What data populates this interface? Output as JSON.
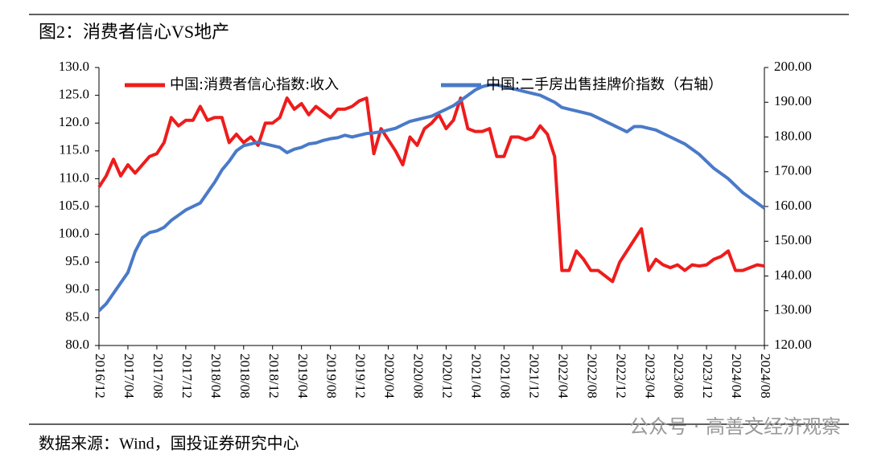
{
  "chart_data": {
    "type": "line",
    "title": "图2：消费者信心VS地产",
    "source": "数据来源：Wind，国投证券研究中心",
    "watermark": "公众号 · 高善文经济观察",
    "categories": [
      "2016/12",
      null,
      null,
      null,
      "2017/04",
      null,
      null,
      null,
      "2017/08",
      null,
      null,
      null,
      "2017/12",
      null,
      null,
      null,
      "2018/04",
      null,
      null,
      null,
      "2018/08",
      null,
      null,
      null,
      "2018/12",
      null,
      null,
      null,
      "2019/04",
      null,
      null,
      null,
      "2019/08",
      null,
      null,
      null,
      "2019/12",
      null,
      null,
      null,
      "2020/04",
      null,
      null,
      null,
      "2020/08",
      null,
      null,
      null,
      "2020/12",
      null,
      null,
      null,
      "2021/04",
      null,
      null,
      null,
      "2021/08",
      null,
      null,
      null,
      "2021/12",
      null,
      null,
      null,
      "2022/04",
      null,
      null,
      null,
      "2022/08",
      null,
      null,
      null,
      "2022/12",
      null,
      null,
      null,
      "2023/04",
      null,
      null,
      null,
      "2023/08",
      null,
      null,
      null,
      "2023/12",
      null,
      null,
      null,
      "2024/04",
      null,
      null,
      null,
      "2024/08"
    ],
    "series": [
      {
        "name": "中国:消费者信心指数:收入",
        "color": "#ee1c1c",
        "axis": "y",
        "values": [
          108.5,
          110.5,
          113.5,
          110.5,
          112.5,
          111,
          112.5,
          114,
          114.5,
          116.5,
          121,
          119.5,
          120.5,
          120.5,
          123,
          120.5,
          121,
          121,
          116.5,
          118,
          116.5,
          117.5,
          116,
          120,
          120,
          121,
          124.5,
          122.5,
          123.5,
          121.5,
          123,
          122,
          121,
          122.5,
          122.5,
          123,
          124,
          124.5,
          114.5,
          119,
          117,
          115,
          112.5,
          117.5,
          116,
          119,
          120,
          121.5,
          119,
          120.5,
          124.5,
          119,
          118.5,
          118.5,
          119,
          114,
          114,
          117.5,
          117.5,
          117,
          117.5,
          119.5,
          118,
          114,
          93.5,
          93.5,
          97,
          95.5,
          93.5,
          93.5,
          92.5,
          91.5,
          95,
          97,
          99,
          101,
          93.5,
          95.5,
          94.5,
          94,
          94.5,
          93.5,
          94.5,
          94.3,
          94.5,
          95.5,
          96,
          97,
          93.5,
          93.5,
          94,
          94.5,
          94.3
        ]
      },
      {
        "name": "中国:二手房出售挂牌价指数（右轴）",
        "color": "#4a7ac8",
        "axis": "y2",
        "values": [
          130,
          132,
          135,
          138,
          141,
          147,
          151,
          152.5,
          153,
          154,
          156,
          157.5,
          159,
          160,
          161,
          164,
          167,
          170.5,
          173,
          176,
          177.5,
          178,
          178.5,
          178,
          177.5,
          177,
          175.5,
          176.5,
          177,
          178,
          178.3,
          179,
          179.5,
          179.8,
          180.5,
          180,
          180.5,
          181,
          181.2,
          181.5,
          182,
          182.5,
          183.5,
          184.5,
          185,
          185.5,
          186,
          187,
          188,
          189,
          190.5,
          192,
          193.5,
          194.5,
          195,
          195,
          194.5,
          194,
          193.5,
          193,
          192.5,
          192,
          191,
          190,
          188.5,
          188,
          187.5,
          187,
          186.5,
          185.5,
          184.5,
          183.5,
          182.5,
          181.5,
          183,
          183,
          182.5,
          182,
          181,
          180,
          179,
          178,
          176.5,
          175,
          173,
          171,
          169.5,
          168,
          166,
          164,
          162.5,
          161,
          159.5
        ]
      }
    ],
    "ylim": [
      80,
      130
    ],
    "yticks": [
      {
        "value": 80,
        "label": "80.0"
      },
      {
        "value": 85,
        "label": "85.0"
      },
      {
        "value": 90,
        "label": "90.0"
      },
      {
        "value": 95,
        "label": "95.0"
      },
      {
        "value": 100,
        "label": "100.0"
      },
      {
        "value": 105,
        "label": "105.0"
      },
      {
        "value": 110,
        "label": "110.0"
      },
      {
        "value": 115,
        "label": "115.0"
      },
      {
        "value": 120,
        "label": "120.0"
      },
      {
        "value": 125,
        "label": "125.0"
      },
      {
        "value": 130,
        "label": "130.0"
      }
    ],
    "y2lim": [
      120,
      200
    ],
    "y2ticks": [
      {
        "value": 120,
        "label": "120.00"
      },
      {
        "value": 130,
        "label": "130.00"
      },
      {
        "value": 140,
        "label": "140.00"
      },
      {
        "value": 150,
        "label": "150.00"
      },
      {
        "value": 160,
        "label": "160.00"
      },
      {
        "value": 170,
        "label": "170.00"
      },
      {
        "value": 180,
        "label": "180.00"
      },
      {
        "value": 190,
        "label": "190.00"
      },
      {
        "value": 200,
        "label": "200.00"
      }
    ],
    "legend": "top",
    "grid": false
  }
}
